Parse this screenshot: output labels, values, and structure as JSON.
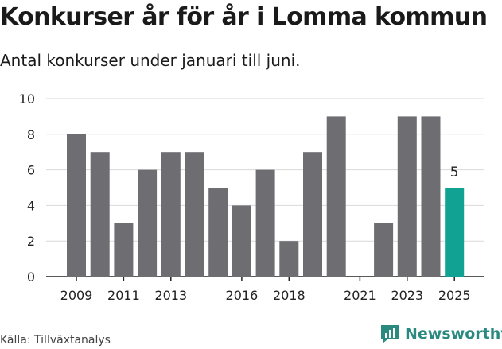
{
  "header": {
    "title": "Konkurser år för år i Lomma kommun",
    "subtitle": "Antal konkurser under januari till juni."
  },
  "footer": {
    "source": "Källa: Tillväxtanalys",
    "brand": "Newsworthy"
  },
  "colors": {
    "bar": "#6e6d72",
    "highlight": "#12a293",
    "grid": "#d9d9d9",
    "brand": "#2b8a80"
  },
  "chart_data": {
    "type": "bar",
    "categories": [
      "2009",
      "2010",
      "2011",
      "2012",
      "2013",
      "2014",
      "2015",
      "2016",
      "2017",
      "2018",
      "2019",
      "2020",
      "2021",
      "2022",
      "2023",
      "2024",
      "2025"
    ],
    "values": [
      8,
      7,
      3,
      6,
      7,
      7,
      5,
      4,
      6,
      2,
      7,
      9,
      0,
      3,
      9,
      9,
      5
    ],
    "highlight_index": 16,
    "data_labels": [
      {
        "index": 16,
        "text": "5"
      }
    ],
    "x_tick_labels": [
      "2009",
      "2011",
      "2013",
      "2016",
      "2018",
      "2021",
      "2023",
      "2025"
    ],
    "y_ticks": [
      0,
      2,
      4,
      6,
      8,
      10
    ],
    "ylim": [
      0,
      10
    ],
    "grid": true
  }
}
